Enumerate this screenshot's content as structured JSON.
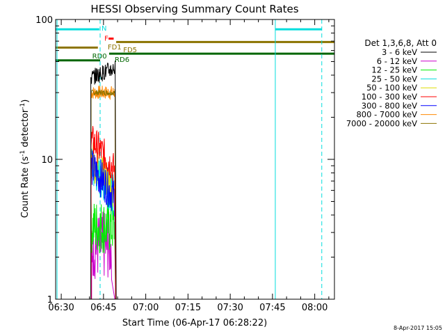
{
  "chart_data": {
    "type": "line",
    "title": "HESSI Observing Summary Count Rates",
    "xlabel": "Start Time (06-Apr-17 06:28:22)",
    "ylabel_main": "Count Rate (s",
    "ylabel_sup1": "-1",
    "ylabel_mid": " detector",
    "ylabel_sup2": "-1",
    "ylabel_end": ")",
    "y_scale": "log",
    "ylim": [
      1,
      100
    ],
    "xlim_minutes": [
      388.0,
      487.0
    ],
    "x_ticks": [
      {
        "minute": 390,
        "label": "06:30"
      },
      {
        "minute": 405,
        "label": "06:45"
      },
      {
        "minute": 420,
        "label": "07:00"
      },
      {
        "minute": 435,
        "label": "07:15"
      },
      {
        "minute": 450,
        "label": "07:30"
      },
      {
        "minute": 465,
        "label": "07:45"
      },
      {
        "minute": 480,
        "label": "08:00"
      }
    ],
    "y_ticks": [
      {
        "value": 1,
        "label": "1"
      },
      {
        "value": 10,
        "label": "10"
      },
      {
        "value": 100,
        "label": "100"
      }
    ],
    "legend_title": "Det 1,3,6,8, Att 0",
    "legend_position": "right",
    "series": [
      {
        "name": "3 - 6 keV",
        "color": "#000000",
        "level": 45,
        "noise": 0.06,
        "start": 400.5,
        "end": 409.5,
        "drop": 409.2
      },
      {
        "name": "6 - 12 keV",
        "color": "#cc00cc",
        "level": 2.4,
        "noise": 0.25,
        "start": 400.8,
        "end": 409.0,
        "drop": 408.0
      },
      {
        "name": "12 - 25 keV",
        "color": "#00ee00",
        "level": 3.3,
        "noise": 0.2,
        "start": 400.6,
        "end": 409.3,
        "drop": 409.0
      },
      {
        "name": "25 - 50 keV",
        "color": "#00dddd",
        "level": 7.0,
        "noise": 0.15,
        "start": 400.6,
        "end": 409.3,
        "drop": 409.1
      },
      {
        "name": "50 - 100 keV",
        "color": "#dddd00",
        "level": 8.0,
        "noise": 0.15,
        "start": 400.6,
        "end": 409.3,
        "drop": 409.1
      },
      {
        "name": "100 - 300 keV",
        "color": "#ff0000",
        "level": 11,
        "noise": 0.12,
        "start": 400.6,
        "end": 409.3,
        "drop": 409.1
      },
      {
        "name": "300 - 800 keV",
        "color": "#0000ff",
        "level": 7.0,
        "noise": 0.14,
        "start": 400.6,
        "end": 409.3,
        "drop": 409.1
      },
      {
        "name": "800 - 7000 keV",
        "color": "#ff8800",
        "level": 30,
        "noise": 0.05,
        "start": 400.6,
        "end": 409.3,
        "drop": 409.2
      },
      {
        "name": "7000 - 20000 keV",
        "color": "#8b7300",
        "level": 30,
        "noise": 0.02,
        "start": 400.6,
        "end": 409.3,
        "drop": 409.2
      }
    ],
    "flag_bars": [
      {
        "label": "N",
        "color": "#00dddd",
        "y": 85,
        "segments": [
          [
            388.0,
            403.5
          ],
          [
            466.0,
            482.5
          ]
        ]
      },
      {
        "label": "F",
        "color": "#ff0000",
        "y": 73,
        "segments": [
          [
            406.8,
            408.6
          ]
        ]
      },
      {
        "label": "FD1",
        "color": "#8b7300",
        "y": 63,
        "segments": [
          [
            388.0,
            403.0
          ]
        ]
      },
      {
        "label": "FD5",
        "color": "#8b7300",
        "y": 69,
        "segments": [
          [
            409.5,
            487.0
          ]
        ]
      },
      {
        "label": "RD0",
        "color": "#006600",
        "y": 51,
        "segments": [
          [
            388.0,
            403.8
          ]
        ]
      },
      {
        "label": "RD6",
        "color": "#006600",
        "y": 57,
        "segments": [
          [
            407.0,
            487.0
          ]
        ]
      }
    ],
    "vertical_lines": [
      {
        "minute": 388.5,
        "color": "#00dddd",
        "dashed": false
      },
      {
        "minute": 403.8,
        "color": "#00dddd",
        "dashed": true
      },
      {
        "minute": 466.0,
        "color": "#00dddd",
        "dashed": false
      },
      {
        "minute": 482.5,
        "color": "#00dddd",
        "dashed": true
      }
    ]
  },
  "footer": {
    "timestamp": "8-Apr-2017 15:05"
  }
}
